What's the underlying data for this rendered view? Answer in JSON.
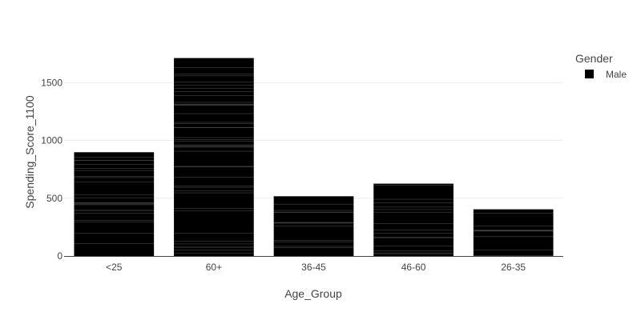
{
  "chart_data": {
    "type": "bar",
    "title": "",
    "xlabel": "Age_Group",
    "ylabel": "Spending_Score_1100",
    "categories": [
      "<25",
      "60+",
      "36-45",
      "46-60",
      "26-35"
    ],
    "series": [
      {
        "name": "Male",
        "values": [
          898,
          1713,
          517,
          626,
          405
        ],
        "color": "#000000"
      }
    ],
    "ylim": [
      0,
      1800
    ],
    "yticks": [
      0,
      500,
      1000,
      1500
    ],
    "ytick_labels": [
      "0",
      "500",
      "1000",
      "1500"
    ],
    "grid": true,
    "legend": {
      "title": "Gender",
      "placement": "top-right"
    },
    "stacked_segments": true
  }
}
